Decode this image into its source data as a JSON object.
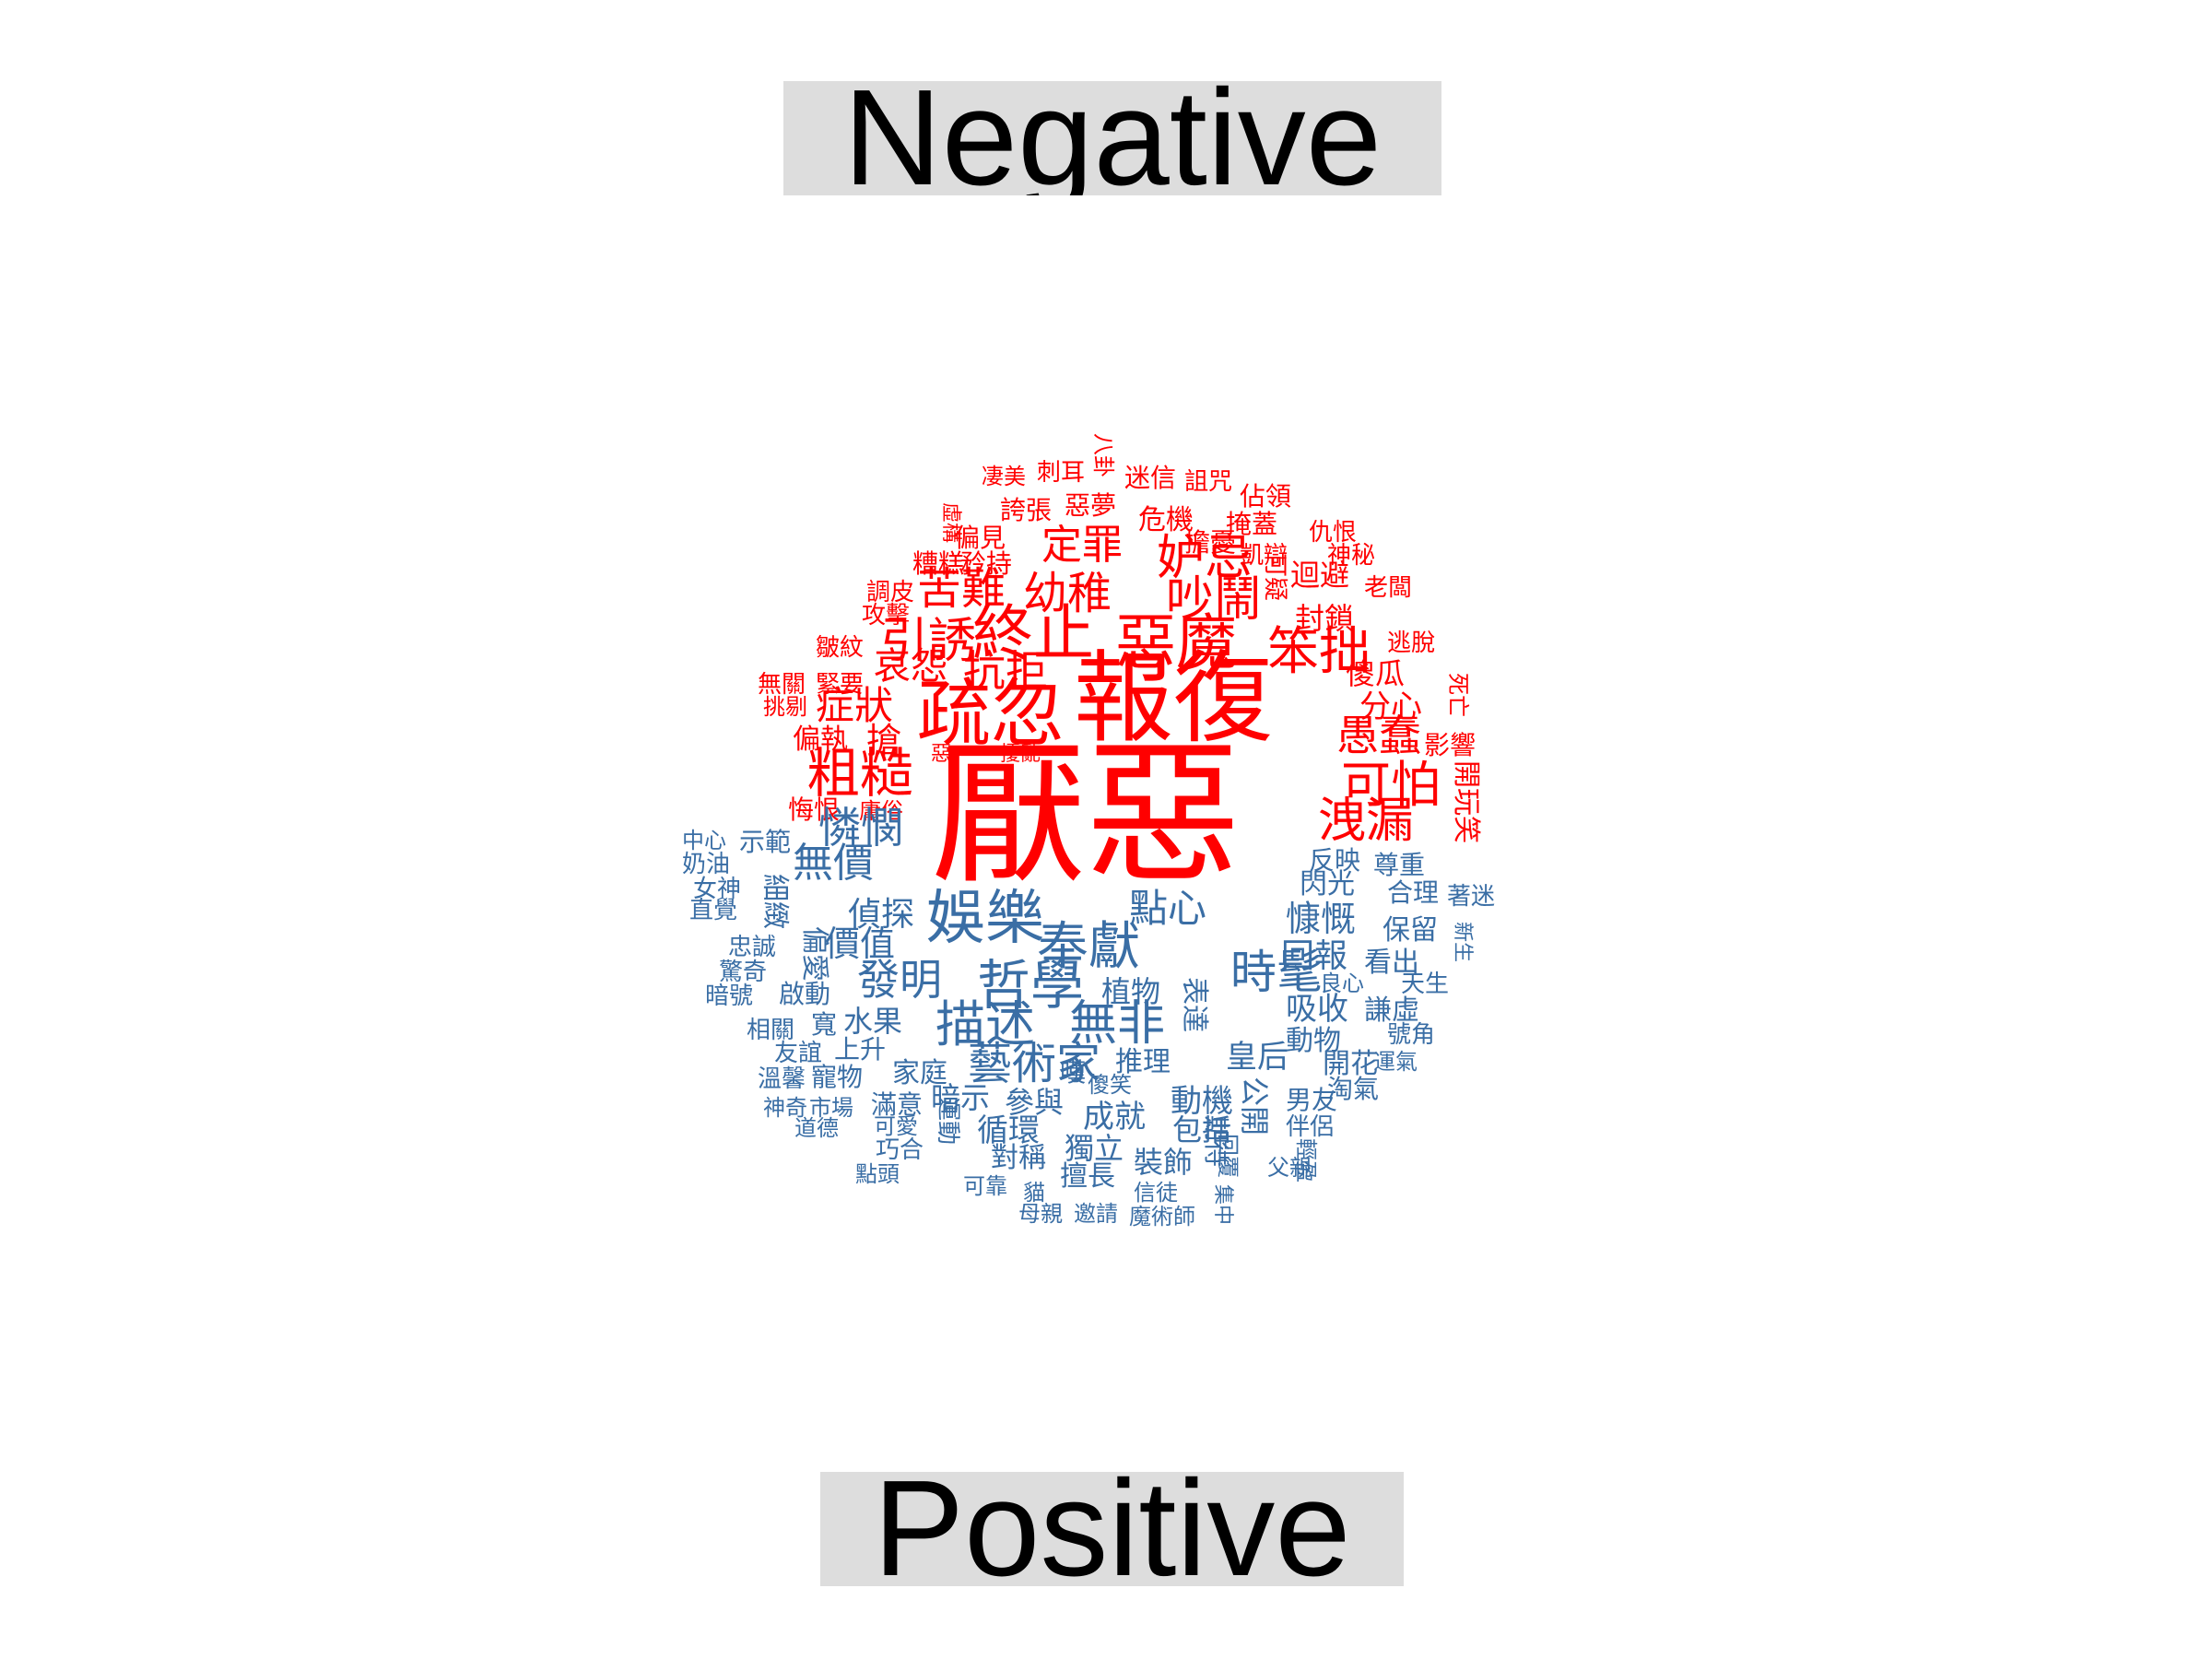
{
  "labels": {
    "negative": "Negative",
    "positive": "Positive"
  },
  "colors": {
    "negative": "#ff0000",
    "positive": "#3a6ea5",
    "label_bg": "#dddddd"
  },
  "negative_words": [
    "厭惡",
    "報復",
    "疏忽",
    "終止",
    "惡魔",
    "笨拙",
    "粗糙",
    "引誘",
    "幼稚",
    "苦難",
    "吵鬧",
    "妒忌",
    "定罪",
    "抗拒",
    "哀怨",
    "症狀",
    "愚蠢",
    "可怕",
    "洩漏",
    "搶",
    "偏執",
    "緊要",
    "無關",
    "挑剔",
    "悔恨",
    "庸俗",
    "皺紋",
    "攻擊",
    "調皮",
    "糟糕",
    "矜持",
    "偏見",
    "誇張",
    "惡夢",
    "危機",
    "擔憂",
    "掩蓋",
    "凱辯",
    "佔領",
    "迷信",
    "詛咒",
    "刺耳",
    "凄美",
    "八卦",
    "仇恨",
    "神秘",
    "迴避",
    "可疑",
    "封鎖",
    "老闆",
    "逃脫",
    "傻瓜",
    "分心",
    "死亡",
    "影響",
    "開玩笑",
    "虛構",
    "惡",
    "擾亂"
  ],
  "positive_words": [
    "娛樂",
    "奉獻",
    "哲學",
    "描述",
    "無非",
    "藝術家",
    "發明",
    "時髦",
    "憐憫",
    "無價",
    "點心",
    "偵探",
    "價值",
    "偏愛",
    "細緻",
    "示範",
    "中心",
    "奶油",
    "女神",
    "直覺",
    "忠誠",
    "驚奇",
    "暗號",
    "啟動",
    "相關",
    "寬",
    "水果",
    "友誼",
    "上升",
    "溫馨",
    "寵物",
    "家庭",
    "神奇",
    "市場",
    "道德",
    "滿意",
    "可愛",
    "巧合",
    "點頭",
    "暗示",
    "運動",
    "循環",
    "參與",
    "成就",
    "獨立",
    "對稱",
    "可靠",
    "擅長",
    "裝飾",
    "貓",
    "母親",
    "邀請",
    "信徒",
    "魔術師",
    "集中",
    "回覆",
    "期待",
    "包括",
    "動機",
    "推理",
    "傻笑",
    "皇后",
    "公開",
    "男友",
    "伴侶",
    "父親",
    "輕盈",
    "開花",
    "淘氣",
    "運氣",
    "號角",
    "謙虛",
    "天生",
    "看出",
    "保留",
    "合理",
    "著迷",
    "新生",
    "尊重",
    "反映",
    "閃光",
    "慷慨",
    "回報",
    "良心",
    "吸收",
    "動物",
    "植物",
    "表達",
    "嘆"
  ]
}
